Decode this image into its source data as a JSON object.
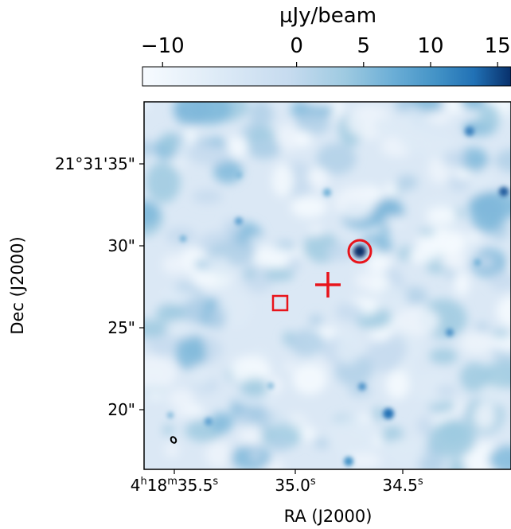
{
  "chart_data": {
    "type": "heatmap",
    "colormap": "Blues",
    "colorbar": {
      "label": "µJy/beam",
      "range": [
        -11.5,
        16
      ],
      "ticks": [
        {
          "value": -10,
          "label": "−10"
        },
        {
          "value": 0,
          "label": "0"
        },
        {
          "value": 5,
          "label": "5"
        },
        {
          "value": 10,
          "label": "10"
        },
        {
          "value": 15,
          "label": "15"
        }
      ],
      "location": "top"
    },
    "xlabel": "RA (J2000)",
    "ylabel": "Dec (J2000)",
    "x_ticks": [
      {
        "label_main": "4",
        "h": "h",
        "m_val": "18",
        "m": "m",
        "s_val": "35.5",
        "s": "s"
      },
      {
        "s_val": "35.0",
        "s": "s"
      },
      {
        "s_val": "34.5",
        "s": "s"
      }
    ],
    "y_ticks": [
      "21°31'35\"",
      "30\"",
      "25\"",
      "20\""
    ],
    "markers": [
      {
        "shape": "circle",
        "color": "#e8141b",
        "label": ""
      },
      {
        "shape": "plus",
        "color": "#e8141b",
        "label": ""
      },
      {
        "shape": "square",
        "color": "#e8141b",
        "label": ""
      },
      {
        "shape": "beam-ellipse",
        "color": "#000000",
        "label": ""
      }
    ],
    "bright_sources": [
      {
        "note": "compact source inside circle",
        "peak": 15
      },
      {
        "note": "compact source near right edge",
        "peak": 12
      },
      {
        "note": "compact source lower middle",
        "peak": 11
      }
    ]
  },
  "colors": {
    "marker": "#e8141b",
    "map_low": "#f7fbff",
    "map_high": "#08306b"
  }
}
